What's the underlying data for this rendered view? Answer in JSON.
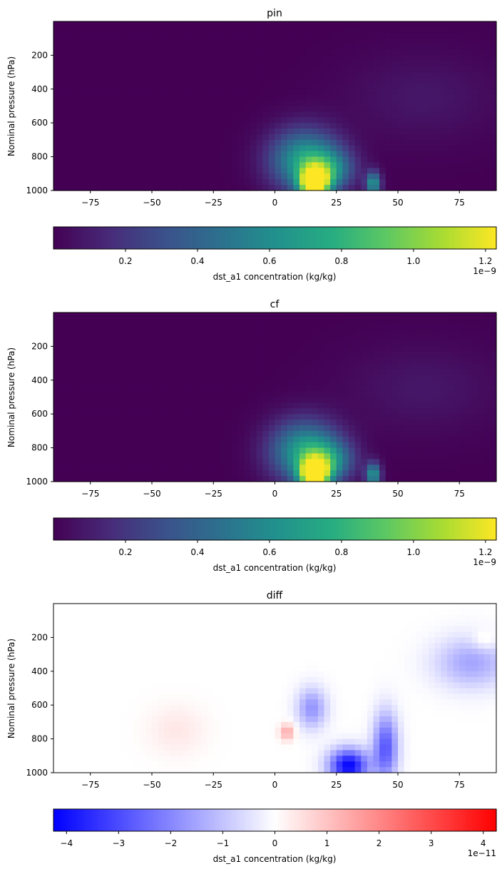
{
  "chart_data": [
    {
      "type": "heatmap",
      "title": "pin",
      "xlabel": "",
      "ylabel": "Nominal pressure (hPa)",
      "xlim": [
        -90,
        90
      ],
      "ylim": [
        1000,
        0
      ],
      "y_inverted": true,
      "xticks": [
        -75,
        -50,
        -25,
        0,
        25,
        50,
        75
      ],
      "yticks": [
        200,
        400,
        600,
        800,
        1000
      ],
      "colormap": "viridis",
      "colorbar": {
        "label": "dst_a1 concentration (kg/kg)",
        "range": [
          0.0,
          1.23
        ],
        "ticks": [
          0.2,
          0.4,
          0.6,
          0.8,
          1.0,
          1.2
        ],
        "tick_labels": [
          "0.2",
          "0.4",
          "0.6",
          "0.8",
          "1.0",
          "1.2"
        ],
        "offset_text": "1e−9",
        "orientation": "horizontal"
      },
      "features": [
        {
          "lat": 16,
          "p": 960,
          "value": 1.23,
          "lat_width": 6,
          "p_width": 90
        },
        {
          "lat": 12,
          "p": 820,
          "value": 0.68,
          "lat_width": 14,
          "p_width": 180
        },
        {
          "lat": 40,
          "p": 960,
          "value": 0.65,
          "lat_width": 3,
          "p_width": 70
        },
        {
          "lat": 22,
          "p": 880,
          "value": 0.45,
          "lat_width": 10,
          "p_width": 120
        },
        {
          "lat": 60,
          "p": 450,
          "value": 0.08,
          "lat_width": 30,
          "p_width": 250
        }
      ]
    },
    {
      "type": "heatmap",
      "title": "cf",
      "xlabel": "",
      "ylabel": "Nominal pressure (hPa)",
      "xlim": [
        -90,
        90
      ],
      "ylim": [
        1000,
        0
      ],
      "y_inverted": true,
      "xticks": [
        -75,
        -50,
        -25,
        0,
        25,
        50,
        75
      ],
      "yticks": [
        200,
        400,
        600,
        800,
        1000
      ],
      "colormap": "viridis",
      "colorbar": {
        "label": "dst_a1 concentration (kg/kg)",
        "range": [
          0.0,
          1.23
        ],
        "ticks": [
          0.2,
          0.4,
          0.6,
          0.8,
          1.0,
          1.2
        ],
        "tick_labels": [
          "0.2",
          "0.4",
          "0.6",
          "0.8",
          "1.0",
          "1.2"
        ],
        "offset_text": "1e−9",
        "orientation": "horizontal"
      },
      "features": [
        {
          "lat": 16,
          "p": 960,
          "value": 1.23,
          "lat_width": 6,
          "p_width": 90
        },
        {
          "lat": 12,
          "p": 820,
          "value": 0.68,
          "lat_width": 14,
          "p_width": 180
        },
        {
          "lat": 40,
          "p": 960,
          "value": 0.65,
          "lat_width": 3,
          "p_width": 70
        },
        {
          "lat": 22,
          "p": 880,
          "value": 0.45,
          "lat_width": 10,
          "p_width": 120
        },
        {
          "lat": 60,
          "p": 450,
          "value": 0.08,
          "lat_width": 30,
          "p_width": 250
        }
      ]
    },
    {
      "type": "heatmap",
      "title": "diff",
      "xlabel": "",
      "ylabel": "Nominal pressure (hPa)",
      "xlim": [
        -90,
        90
      ],
      "ylim": [
        1000,
        0
      ],
      "y_inverted": true,
      "xticks": [
        -75,
        -50,
        -25,
        0,
        25,
        50,
        75
      ],
      "yticks": [
        200,
        400,
        600,
        800,
        1000
      ],
      "colormap": "bwr",
      "colorbar": {
        "label": "dst_a1 concentration (kg/kg)",
        "range": [
          -4.25,
          4.25
        ],
        "ticks": [
          -4,
          -3,
          -2,
          -1,
          0,
          1,
          2,
          3,
          4
        ],
        "tick_labels": [
          "−4",
          "−3",
          "−2",
          "−1",
          "0",
          "1",
          "2",
          "3",
          "4"
        ],
        "offset_text": "1e−11",
        "orientation": "horizontal"
      },
      "features": [
        {
          "lat": 30,
          "p": 960,
          "value": -4.2,
          "lat_width": 8,
          "p_width": 100
        },
        {
          "lat": 45,
          "p": 850,
          "value": -2.8,
          "lat_width": 5,
          "p_width": 200
        },
        {
          "lat": 15,
          "p": 620,
          "value": -1.8,
          "lat_width": 6,
          "p_width": 120
        },
        {
          "lat": 5,
          "p": 760,
          "value": 1.5,
          "lat_width": 3,
          "p_width": 50
        },
        {
          "lat": -40,
          "p": 750,
          "value": 0.4,
          "lat_width": 12,
          "p_width": 150
        },
        {
          "lat": 80,
          "p": 350,
          "value": -1.5,
          "lat_width": 15,
          "p_width": 150
        },
        {
          "lat": 85,
          "p": 220,
          "value": 0.6,
          "lat_width": 5,
          "p_width": 60
        }
      ]
    }
  ]
}
